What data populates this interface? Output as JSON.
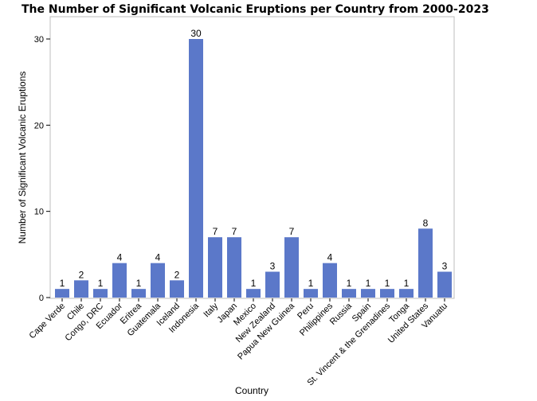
{
  "chart_data": {
    "type": "bar",
    "title": "The Number of Significant Volcanic Eruptions per Country from 2000-2023",
    "xlabel": "Country",
    "ylabel": "Number of Significant Volcanic Eruptions",
    "ylim": [
      0,
      32
    ],
    "yticks": [
      0,
      10,
      20,
      30
    ],
    "grid": false,
    "bar_color": "#5B78C9",
    "categories": [
      "Cape Verde",
      "Chile",
      "Congo, DRC",
      "Ecuador",
      "Eritrea",
      "Guatemala",
      "Iceland",
      "Indonesia",
      "Italy",
      "Japan",
      "Mexico",
      "New Zealand",
      "Papua New Guinea",
      "Peru",
      "Philippines",
      "Russia",
      "Spain",
      "St. Vincent & the Grenadines",
      "Tonga",
      "United States",
      "Vanuatu"
    ],
    "values": [
      1,
      2,
      1,
      4,
      1,
      4,
      2,
      30,
      7,
      7,
      1,
      3,
      7,
      1,
      4,
      1,
      1,
      1,
      1,
      8,
      3
    ]
  }
}
